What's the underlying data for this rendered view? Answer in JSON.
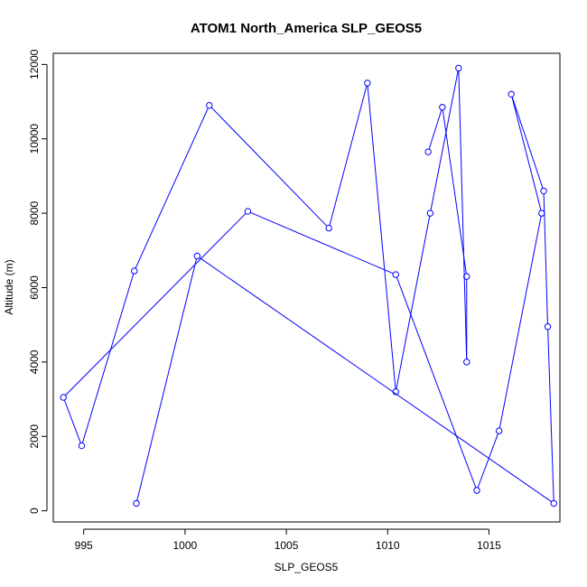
{
  "chart_data": {
    "type": "line",
    "title": "ATOM1 North_America SLP_GEOS5",
    "xlabel": "SLP_GEOS5",
    "ylabel": "Altitude (m)",
    "xlim": [
      993.5,
      1018.5
    ],
    "ylim": [
      -300,
      12300
    ],
    "x_ticks": [
      "995",
      "1000",
      "1005",
      "1010",
      "1015"
    ],
    "y_ticks": [
      "0",
      "2000",
      "4000",
      "6000",
      "8000",
      "10000",
      "12000"
    ],
    "grid": false,
    "line_color": "#0000ff",
    "series": [
      {
        "points": [
          {
            "x": 997.6,
            "y": 200
          },
          {
            "x": 1000.6,
            "y": 6850
          },
          {
            "x": 1018.2,
            "y": 200
          },
          {
            "x": 1017.9,
            "y": 4950
          },
          {
            "x": 1017.7,
            "y": 8600
          },
          {
            "x": 1016.1,
            "y": 11200
          },
          {
            "x": 1017.6,
            "y": 8000
          },
          {
            "x": 1015.5,
            "y": 2150
          },
          {
            "x": 1014.4,
            "y": 550
          },
          {
            "x": 1010.4,
            "y": 6350
          },
          {
            "x": 1003.1,
            "y": 8050
          },
          {
            "x": 994.0,
            "y": 3050
          },
          {
            "x": 994.9,
            "y": 1750
          },
          {
            "x": 997.5,
            "y": 6450
          },
          {
            "x": 1001.2,
            "y": 10900
          },
          {
            "x": 1007.1,
            "y": 7600
          },
          {
            "x": 1009.0,
            "y": 11500
          },
          {
            "x": 1010.4,
            "y": 3200
          },
          {
            "x": 1012.1,
            "y": 8000
          },
          {
            "x": 1013.5,
            "y": 11900
          },
          {
            "x": 1013.9,
            "y": 4000
          },
          {
            "x": 1013.9,
            "y": 6300
          },
          {
            "x": 1012.7,
            "y": 10850
          },
          {
            "x": 1012.0,
            "y": 9650
          }
        ]
      }
    ]
  }
}
